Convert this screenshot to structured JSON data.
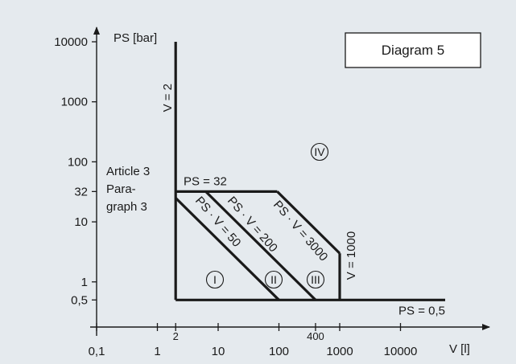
{
  "chart_data": {
    "type": "line",
    "title": "Diagram 5",
    "xlabel": "V [l]",
    "ylabel": "PS [bar]",
    "x_scale": "log",
    "y_scale": "log",
    "xlim": [
      0.1,
      20000
    ],
    "ylim": [
      0.5,
      10000
    ],
    "grid": false,
    "colors": {
      "background": "#e5eaee",
      "line": "#1a1a1a",
      "box": "#ffffff"
    },
    "x_ticks": [
      {
        "value": 0.1,
        "label": "0,1"
      },
      {
        "value": 1,
        "label": "1"
      },
      {
        "value": 10,
        "label": "10"
      },
      {
        "value": 100,
        "label": "100"
      },
      {
        "value": 1000,
        "label": "1000"
      },
      {
        "value": 10000,
        "label": "10000"
      }
    ],
    "x_minor_ticks": [
      {
        "value": 2,
        "label": "2"
      },
      {
        "value": 400,
        "label": "400"
      }
    ],
    "y_ticks": [
      {
        "value": 10000,
        "label": "10000"
      },
      {
        "value": 1000,
        "label": "1000"
      },
      {
        "value": 100,
        "label": "100"
      },
      {
        "value": 32,
        "label": "32"
      },
      {
        "value": 10,
        "label": "10"
      },
      {
        "value": 1,
        "label": "1"
      },
      {
        "value": 0.5,
        "label": "0,5"
      }
    ],
    "series": [
      {
        "name": "V = 2",
        "x": [
          2,
          2
        ],
        "y": [
          0.5,
          10000
        ]
      },
      {
        "name": "PS = 0,5",
        "x": [
          2,
          20000
        ],
        "y": [
          0.5,
          0.5
        ]
      },
      {
        "name": "PS = 32",
        "x": [
          2,
          93.75
        ],
        "y": [
          32,
          32
        ]
      },
      {
        "name": "PS · V = 50",
        "x": [
          2,
          100
        ],
        "y": [
          25,
          0.5
        ]
      },
      {
        "name": "PS · V = 200",
        "x": [
          6.25,
          400
        ],
        "y": [
          32,
          0.5
        ]
      },
      {
        "name": "PS · V = 3000",
        "x": [
          93.75,
          1000
        ],
        "y": [
          32,
          3
        ]
      },
      {
        "name": "V = 1000",
        "x": [
          1000,
          1000
        ],
        "y": [
          0.5,
          3
        ]
      }
    ],
    "annotations": [
      {
        "id": "article",
        "text_lines": [
          "Article 3",
          "Para-",
          "graph 3"
        ]
      },
      {
        "id": "region-1",
        "text": "I",
        "x": 35,
        "y": 1.2
      },
      {
        "id": "region-2",
        "text": "II",
        "x": 230,
        "y": 1.2
      },
      {
        "id": "region-3",
        "text": "III",
        "x": 760,
        "y": 1.2
      },
      {
        "id": "region-4",
        "text": "IV",
        "x": 1300,
        "y": 180
      }
    ]
  }
}
